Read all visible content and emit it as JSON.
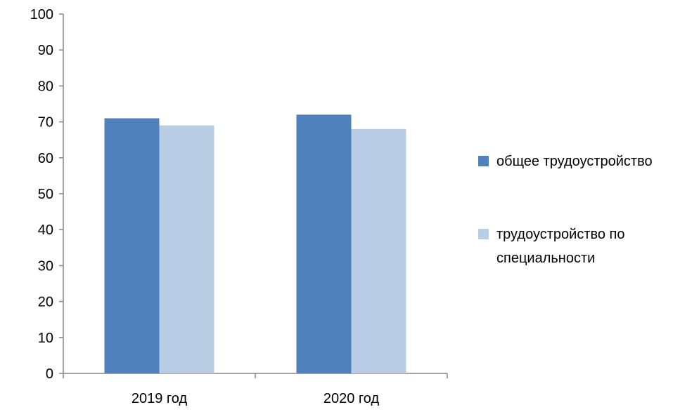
{
  "chart_data": {
    "type": "bar",
    "categories": [
      "2019 год",
      "2020 год"
    ],
    "series": [
      {
        "name": "общее трудоустройство",
        "values": [
          71,
          72
        ],
        "color": "#4f81bd"
      },
      {
        "name": "трудоустройство по специальности",
        "values": [
          69,
          68
        ],
        "color": "#b9cde5"
      }
    ],
    "legend": {
      "position": "right",
      "entries": [
        {
          "lines": [
            "общее трудоустройство"
          ]
        },
        {
          "lines": [
            "трудоустройство по",
            "специальности"
          ]
        }
      ]
    },
    "ylim": [
      0,
      100
    ],
    "yticks": [
      "0",
      "10",
      "20",
      "30",
      "40",
      "50",
      "60",
      "70",
      "80",
      "90",
      "100"
    ],
    "grid": false,
    "title": "",
    "xlabel": "",
    "ylabel": ""
  }
}
